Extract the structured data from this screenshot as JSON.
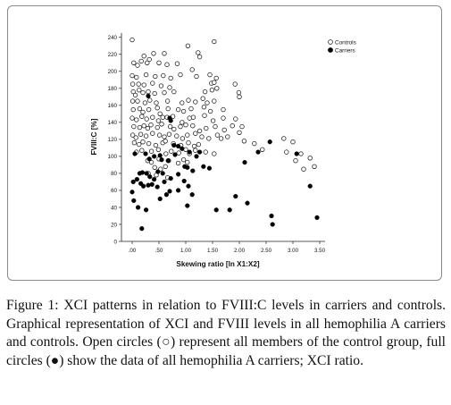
{
  "chart_data": {
    "type": "scatter",
    "xlabel": "Skewing ratio [ln X1:X2]",
    "ylabel": "FVIII:C [%]",
    "xlim": [
      -0.05,
      3.6
    ],
    "ylim": [
      0,
      245
    ],
    "x_ticks": [
      ".00",
      ".50",
      "1.00",
      "1.50",
      "2.00",
      "2.50",
      "3.00",
      "3.50"
    ],
    "y_ticks": [
      "0",
      "20",
      "40",
      "60",
      "80",
      "100",
      "120",
      "140",
      "160",
      "180",
      "200",
      "220",
      "240"
    ],
    "grid": false,
    "legend_position": "top-right",
    "series": [
      {
        "name": "Controls",
        "marker": "open-circle",
        "color": "#1a1a1a",
        "points": [
          [
            0.0,
            237
          ],
          [
            0.22,
            218
          ],
          [
            0.4,
            221
          ],
          [
            0.6,
            221
          ],
          [
            1.04,
            230
          ],
          [
            1.23,
            222
          ],
          [
            1.53,
            235
          ],
          [
            0.03,
            210
          ],
          [
            0.1,
            207
          ],
          [
            0.17,
            212
          ],
          [
            0.28,
            210
          ],
          [
            0.32,
            214
          ],
          [
            0.5,
            210
          ],
          [
            0.65,
            208
          ],
          [
            0.84,
            209
          ],
          [
            1.12,
            202
          ],
          [
            1.26,
            217
          ],
          [
            0.0,
            195
          ],
          [
            0.08,
            193
          ],
          [
            0.26,
            196
          ],
          [
            0.43,
            194
          ],
          [
            0.58,
            195
          ],
          [
            0.72,
            192
          ],
          [
            0.9,
            196
          ],
          [
            1.2,
            194
          ],
          [
            1.45,
            196
          ],
          [
            1.57,
            192
          ],
          [
            0.01,
            185
          ],
          [
            0.12,
            185
          ],
          [
            0.22,
            184
          ],
          [
            0.38,
            186
          ],
          [
            0.54,
            183
          ],
          [
            0.7,
            181
          ],
          [
            1.48,
            186
          ],
          [
            1.53,
            187
          ],
          [
            1.92,
            185
          ],
          [
            0.02,
            176
          ],
          [
            0.06,
            172
          ],
          [
            0.13,
            178
          ],
          [
            0.2,
            175
          ],
          [
            0.3,
            176
          ],
          [
            0.42,
            174
          ],
          [
            0.6,
            175
          ],
          [
            0.78,
            176
          ],
          [
            1.36,
            176
          ],
          [
            1.49,
            178
          ],
          [
            1.58,
            180
          ],
          [
            1.99,
            175
          ],
          [
            0.01,
            165
          ],
          [
            0.1,
            165
          ],
          [
            0.24,
            163
          ],
          [
            0.33,
            166
          ],
          [
            0.45,
            163
          ],
          [
            0.66,
            165
          ],
          [
            0.93,
            163
          ],
          [
            1.05,
            166
          ],
          [
            1.18,
            164
          ],
          [
            1.32,
            168
          ],
          [
            1.4,
            163
          ],
          [
            1.53,
            165
          ],
          [
            2.0,
            170
          ],
          [
            0.02,
            155
          ],
          [
            0.14,
            156
          ],
          [
            0.2,
            152
          ],
          [
            0.31,
            155
          ],
          [
            0.47,
            157
          ],
          [
            0.52,
            150
          ],
          [
            0.67,
            156
          ],
          [
            0.86,
            155
          ],
          [
            0.96,
            153
          ],
          [
            1.1,
            156
          ],
          [
            1.34,
            158
          ],
          [
            1.46,
            153
          ],
          [
            1.7,
            155
          ],
          [
            0.0,
            145
          ],
          [
            0.08,
            143
          ],
          [
            0.18,
            147
          ],
          [
            0.27,
            144
          ],
          [
            0.38,
            146
          ],
          [
            0.49,
            142
          ],
          [
            0.57,
            146
          ],
          [
            0.65,
            146
          ],
          [
            0.76,
            147
          ],
          [
            0.93,
            140
          ],
          [
            1.07,
            145
          ],
          [
            1.14,
            146
          ],
          [
            1.35,
            148
          ],
          [
            1.51,
            142
          ],
          [
            1.7,
            145
          ],
          [
            1.93,
            144
          ],
          [
            0.03,
            135
          ],
          [
            0.14,
            134
          ],
          [
            0.22,
            136
          ],
          [
            0.29,
            133
          ],
          [
            0.35,
            137
          ],
          [
            0.47,
            134
          ],
          [
            0.55,
            138
          ],
          [
            0.71,
            135
          ],
          [
            0.78,
            132
          ],
          [
            0.9,
            135
          ],
          [
            1.0,
            137
          ],
          [
            1.13,
            136
          ],
          [
            1.26,
            130
          ],
          [
            1.38,
            133
          ],
          [
            1.55,
            135
          ],
          [
            1.72,
            131
          ],
          [
            1.87,
            136
          ],
          [
            2.0,
            128
          ],
          [
            2.05,
            135
          ],
          [
            0.01,
            125
          ],
          [
            0.07,
            122
          ],
          [
            0.16,
            126
          ],
          [
            0.26,
            124
          ],
          [
            0.38,
            127
          ],
          [
            0.51,
            125
          ],
          [
            0.6,
            123
          ],
          [
            0.69,
            126
          ],
          [
            0.83,
            124
          ],
          [
            0.94,
            121
          ],
          [
            1.03,
            125
          ],
          [
            1.18,
            127
          ],
          [
            1.3,
            123
          ],
          [
            1.43,
            121
          ],
          [
            1.59,
            125
          ],
          [
            1.66,
            121
          ],
          [
            1.78,
            123
          ],
          [
            2.09,
            118
          ],
          [
            0.04,
            116
          ],
          [
            0.13,
            114
          ],
          [
            0.2,
            117
          ],
          [
            0.31,
            115
          ],
          [
            0.44,
            113
          ],
          [
            0.57,
            116
          ],
          [
            0.62,
            118
          ],
          [
            0.77,
            115
          ],
          [
            0.91,
            113
          ],
          [
            1.05,
            116
          ],
          [
            1.16,
            112
          ],
          [
            1.24,
            114
          ],
          [
            0.08,
            105
          ],
          [
            0.18,
            107
          ],
          [
            0.36,
            106
          ],
          [
            0.49,
            108
          ],
          [
            0.63,
            103
          ],
          [
            0.73,
            106
          ],
          [
            0.87,
            104
          ],
          [
            1.0,
            108
          ],
          [
            1.07,
            103
          ],
          [
            1.18,
            107
          ],
          [
            1.37,
            105
          ],
          [
            1.53,
            103
          ],
          [
            0.29,
            95
          ],
          [
            0.36,
            93
          ],
          [
            0.5,
            97
          ],
          [
            0.68,
            95
          ],
          [
            0.86,
            92
          ],
          [
            0.96,
            96
          ],
          [
            1.03,
            93
          ],
          [
            0.42,
            87
          ],
          [
            0.53,
            85
          ],
          [
            0.62,
            88
          ],
          [
            0.3,
            80
          ],
          [
            0.45,
            78
          ],
          [
            0.66,
            75
          ],
          [
            2.28,
            115
          ],
          [
            2.43,
            108
          ],
          [
            2.83,
            121
          ],
          [
            2.88,
            105
          ],
          [
            3.0,
            117
          ],
          [
            3.05,
            95
          ],
          [
            3.15,
            103
          ],
          [
            3.2,
            85
          ],
          [
            3.32,
            98
          ],
          [
            3.4,
            88
          ]
        ]
      },
      {
        "name": "Carriers",
        "marker": "filled-circle",
        "color": "#000000",
        "points": [
          [
            0.3,
            171
          ],
          [
            0.72,
            142
          ],
          [
            0.7,
            145
          ],
          [
            0.78,
            113
          ],
          [
            0.86,
            112
          ],
          [
            0.93,
            109
          ],
          [
            1.07,
            105
          ],
          [
            1.2,
            100
          ],
          [
            1.26,
            105
          ],
          [
            0.05,
            103
          ],
          [
            0.25,
            103
          ],
          [
            0.32,
            97
          ],
          [
            0.41,
            100
          ],
          [
            0.52,
            101
          ],
          [
            0.55,
            96
          ],
          [
            0.67,
            95
          ],
          [
            0.8,
            102
          ],
          [
            0.14,
            80
          ],
          [
            0.19,
            81
          ],
          [
            0.27,
            80
          ],
          [
            0.33,
            76
          ],
          [
            0.41,
            73
          ],
          [
            0.48,
            82
          ],
          [
            0.57,
            80
          ],
          [
            0.72,
            74
          ],
          [
            0.86,
            79
          ],
          [
            0.98,
            88
          ],
          [
            1.03,
            87
          ],
          [
            1.13,
            83
          ],
          [
            1.33,
            88
          ],
          [
            1.44,
            86
          ],
          [
            0.02,
            70
          ],
          [
            0.09,
            73
          ],
          [
            0.16,
            68
          ],
          [
            0.21,
            65
          ],
          [
            0.3,
            66
          ],
          [
            0.37,
            67
          ],
          [
            0.47,
            64
          ],
          [
            0.6,
            70
          ],
          [
            0.7,
            59
          ],
          [
            0.86,
            60
          ],
          [
            0.97,
            71
          ],
          [
            1.05,
            65
          ],
          [
            1.12,
            55
          ],
          [
            0.0,
            58
          ],
          [
            0.03,
            48
          ],
          [
            0.11,
            40
          ],
          [
            0.26,
            37
          ],
          [
            0.52,
            50
          ],
          [
            0.64,
            55
          ],
          [
            1.03,
            42
          ],
          [
            1.57,
            37
          ],
          [
            1.82,
            37
          ],
          [
            1.93,
            53
          ],
          [
            2.15,
            45
          ],
          [
            0.18,
            15
          ],
          [
            2.1,
            93
          ],
          [
            2.35,
            105
          ],
          [
            2.57,
            117
          ],
          [
            2.6,
            30
          ],
          [
            2.62,
            20
          ],
          [
            3.07,
            103
          ],
          [
            3.32,
            65
          ],
          [
            3.45,
            28
          ]
        ]
      }
    ]
  },
  "caption": {
    "label": "Figure 1:",
    "text": " XCI patterns in relation to FVIII:C levels in carriers and controls. Graphical representation of XCI and FVIII levels in all hemophilia A carriers and controls. Open circles (○) represent all members of the control group, full circles (●) show the data of all hemophilia A carriers; XCI ratio."
  }
}
